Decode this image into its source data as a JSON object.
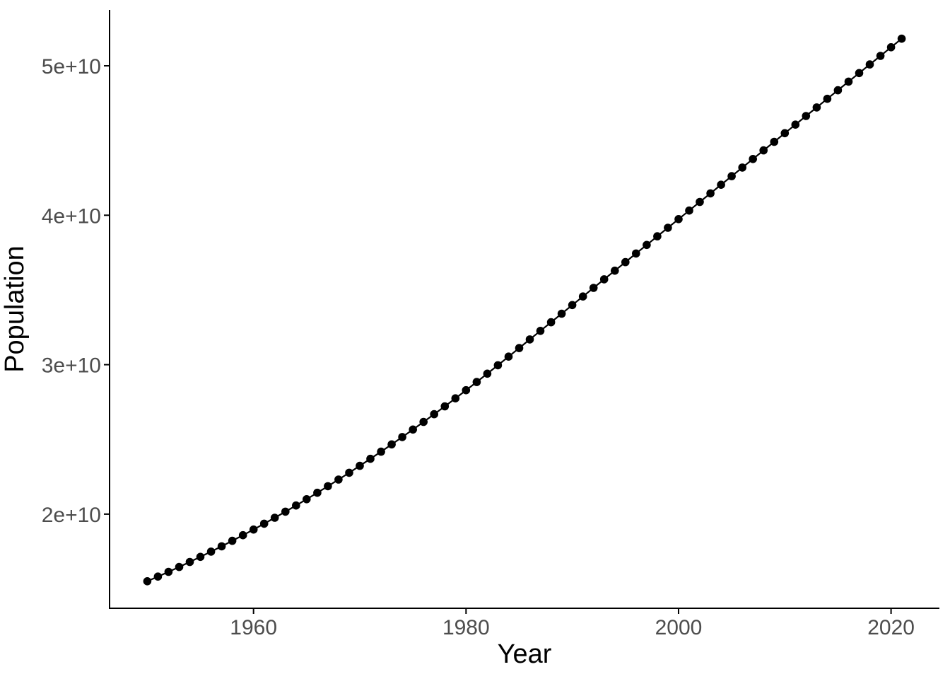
{
  "chart_data": {
    "type": "line",
    "markers": true,
    "title": "",
    "xlabel": "Year",
    "ylabel": "Population",
    "legend": "none",
    "grid": false,
    "theme": "classic",
    "background": "#ffffff",
    "axis_line_color": "#000000",
    "axis_title_color": "#000000",
    "tick_label_color": "#4d4d4d",
    "point_color": "#000000",
    "line_color": "#000000",
    "xlim": [
      1946.45,
      2024.55
    ],
    "ylim": [
      13700000000.0,
      53740000000.0
    ],
    "x_ticks": [
      {
        "value": 1960,
        "label": "1960"
      },
      {
        "value": 1980,
        "label": "1980"
      },
      {
        "value": 2000,
        "label": "2000"
      },
      {
        "value": 2020,
        "label": "2020"
      }
    ],
    "y_ticks": [
      {
        "value": 20000000000.0,
        "label": "2e+10"
      },
      {
        "value": 30000000000.0,
        "label": "3e+10"
      },
      {
        "value": 40000000000.0,
        "label": "4e+10"
      },
      {
        "value": 50000000000.0,
        "label": "5e+10"
      }
    ],
    "series": [
      {
        "name": "Population",
        "x": [
          1950,
          1951,
          1952,
          1953,
          1954,
          1955,
          1956,
          1957,
          1958,
          1959,
          1960,
          1961,
          1962,
          1963,
          1964,
          1965,
          1966,
          1967,
          1968,
          1969,
          1970,
          1971,
          1972,
          1973,
          1974,
          1975,
          1976,
          1977,
          1978,
          1979,
          1980,
          1981,
          1982,
          1983,
          1984,
          1985,
          1986,
          1987,
          1988,
          1989,
          1990,
          1991,
          1992,
          1993,
          1994,
          1995,
          1996,
          1997,
          1998,
          1999,
          2000,
          2001,
          2002,
          2003,
          2004,
          2005,
          2006,
          2007,
          2008,
          2009,
          2010,
          2011,
          2012,
          2013,
          2014,
          2015,
          2016,
          2017,
          2018,
          2019,
          2020,
          2021
        ],
        "y": [
          15510000000.0,
          15820000000.0,
          16138000000.0,
          16464000000.0,
          16798000000.0,
          17140000000.0,
          17490000000.0,
          17848000000.0,
          18214000000.0,
          18588000000.0,
          18970000000.0,
          19360000000.0,
          19758000000.0,
          20164000000.0,
          20578000000.0,
          21000000000.0,
          21430000000.0,
          21868000000.0,
          22314000000.0,
          22768000000.0,
          23230000000.0,
          23700000000.0,
          24178000000.0,
          24664000000.0,
          25158000000.0,
          25660000000.0,
          26170000000.0,
          26688000000.0,
          27214000000.0,
          27748000000.0,
          28290000000.0,
          28840000000.0,
          29398000000.0,
          29964000000.0,
          30539000000.0,
          31114000000.0,
          31689000000.0,
          32264000000.0,
          32839000000.0,
          33414000000.0,
          33989000000.0,
          34564000000.0,
          35139000000.0,
          35714000000.0,
          36289000000.0,
          36864000000.0,
          37439000000.0,
          38014000000.0,
          38589000000.0,
          39164000000.0,
          39739000000.0,
          40314000000.0,
          40889000000.0,
          41464000000.0,
          42039000000.0,
          42614000000.0,
          43189000000.0,
          43764000000.0,
          44339000000.0,
          44914000000.0,
          45489000000.0,
          46064000000.0,
          46639000000.0,
          47214000000.0,
          47789000000.0,
          48364000000.0,
          48939000000.0,
          49514000000.0,
          50089000000.0,
          50664000000.0,
          51239000000.0,
          51814000000.0
        ]
      }
    ]
  }
}
